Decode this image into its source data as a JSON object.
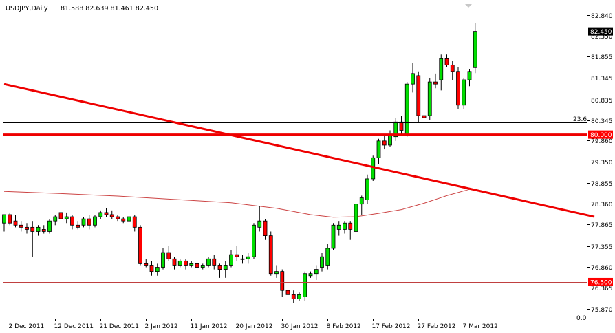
{
  "header": {
    "symbol_label": "USDJPY,Daily",
    "ohlc_label": "81.588 82.639 81.461 82.450"
  },
  "price_tags": {
    "current": "82.450",
    "level_80": "80.000",
    "level_765": "76.500"
  },
  "fib_label": "23.6",
  "bottom_left_label": "0.0",
  "colors": {
    "bull": "#00e000",
    "bear": "#ff0000",
    "candle_outline": "#000000",
    "trend_line": "#ee0000",
    "ma_line": "#cc4444",
    "tag_red": "#ff0000",
    "tag_black": "#000000",
    "grid_line": "#d0d0d0"
  },
  "chart_data": {
    "type": "candlestick",
    "title": "USDJPY,Daily",
    "ylim": [
      75.65,
      82.95
    ],
    "y_ticks": [
      82.84,
      82.35,
      81.855,
      81.345,
      80.835,
      80.345,
      79.86,
      79.35,
      78.855,
      78.36,
      77.865,
      77.355,
      76.86,
      76.365,
      75.87
    ],
    "y_tick_labels": [
      "82.840",
      "82.350",
      "81.855",
      "81.345",
      "80.835",
      "80.345",
      "79.860",
      "79.350",
      "78.855",
      "78.360",
      "77.865",
      "77.355",
      "76.860",
      "76.365",
      "75.870"
    ],
    "x_labels": [
      "2 Dec 2011",
      "12 Dec 2011",
      "21 Dec 2011",
      "2 Jan 2012",
      "11 Jan 2012",
      "20 Jan 2012",
      "30 Jan 2012",
      "8 Feb 2012",
      "17 Feb 2012",
      "27 Feb 2012",
      "7 Mar 2012"
    ],
    "x_label_index": [
      1,
      9,
      17,
      25,
      33,
      41,
      49,
      57,
      65,
      73,
      81
    ],
    "candles": [
      {
        "o": 77.9,
        "h": 78.1,
        "l": 77.7,
        "c": 78.1
      },
      {
        "o": 78.1,
        "h": 78.15,
        "l": 77.85,
        "c": 77.9
      },
      {
        "o": 77.95,
        "h": 78.1,
        "l": 77.8,
        "c": 77.85
      },
      {
        "o": 77.85,
        "h": 77.95,
        "l": 77.7,
        "c": 77.8
      },
      {
        "o": 77.8,
        "h": 77.9,
        "l": 77.65,
        "c": 77.75
      },
      {
        "o": 77.8,
        "h": 77.95,
        "l": 77.1,
        "c": 77.7
      },
      {
        "o": 77.7,
        "h": 77.85,
        "l": 77.6,
        "c": 77.8
      },
      {
        "o": 77.75,
        "h": 77.85,
        "l": 77.65,
        "c": 77.7
      },
      {
        "o": 77.7,
        "h": 78.0,
        "l": 77.65,
        "c": 77.95
      },
      {
        "o": 77.95,
        "h": 78.1,
        "l": 77.85,
        "c": 78.05
      },
      {
        "o": 78.15,
        "h": 78.2,
        "l": 77.9,
        "c": 78.0
      },
      {
        "o": 78.0,
        "h": 78.15,
        "l": 77.9,
        "c": 78.05
      },
      {
        "o": 78.05,
        "h": 78.1,
        "l": 77.75,
        "c": 77.85
      },
      {
        "o": 77.85,
        "h": 77.95,
        "l": 77.75,
        "c": 77.8
      },
      {
        "o": 77.85,
        "h": 78.05,
        "l": 77.8,
        "c": 78.0
      },
      {
        "o": 78.0,
        "h": 78.1,
        "l": 77.75,
        "c": 77.85
      },
      {
        "o": 77.85,
        "h": 78.1,
        "l": 77.8,
        "c": 78.05
      },
      {
        "o": 78.05,
        "h": 78.2,
        "l": 78.0,
        "c": 78.15
      },
      {
        "o": 78.15,
        "h": 78.25,
        "l": 78.05,
        "c": 78.1
      },
      {
        "o": 78.1,
        "h": 78.2,
        "l": 78.0,
        "c": 78.05
      },
      {
        "o": 78.05,
        "h": 78.1,
        "l": 77.95,
        "c": 78.0
      },
      {
        "o": 78.0,
        "h": 78.05,
        "l": 77.9,
        "c": 77.95
      },
      {
        "o": 77.95,
        "h": 78.1,
        "l": 77.9,
        "c": 78.05
      },
      {
        "o": 78.05,
        "h": 78.1,
        "l": 77.7,
        "c": 77.8
      },
      {
        "o": 77.8,
        "h": 77.85,
        "l": 76.9,
        "c": 76.95
      },
      {
        "o": 76.95,
        "h": 77.05,
        "l": 76.85,
        "c": 76.9
      },
      {
        "o": 76.9,
        "h": 77.0,
        "l": 76.65,
        "c": 76.75
      },
      {
        "o": 76.75,
        "h": 76.95,
        "l": 76.65,
        "c": 76.85
      },
      {
        "o": 76.85,
        "h": 77.3,
        "l": 76.8,
        "c": 77.2
      },
      {
        "o": 77.2,
        "h": 77.35,
        "l": 77.0,
        "c": 77.05
      },
      {
        "o": 77.05,
        "h": 77.1,
        "l": 76.8,
        "c": 76.9
      },
      {
        "o": 76.9,
        "h": 77.05,
        "l": 76.85,
        "c": 77.0
      },
      {
        "o": 77.0,
        "h": 77.05,
        "l": 76.8,
        "c": 76.9
      },
      {
        "o": 76.9,
        "h": 77.0,
        "l": 76.85,
        "c": 76.95
      },
      {
        "o": 76.95,
        "h": 77.05,
        "l": 76.75,
        "c": 76.85
      },
      {
        "o": 76.85,
        "h": 76.95,
        "l": 76.8,
        "c": 76.9
      },
      {
        "o": 76.9,
        "h": 77.1,
        "l": 76.85,
        "c": 77.05
      },
      {
        "o": 77.05,
        "h": 77.15,
        "l": 76.8,
        "c": 76.9
      },
      {
        "o": 76.9,
        "h": 76.95,
        "l": 76.6,
        "c": 76.8
      },
      {
        "o": 76.8,
        "h": 77.0,
        "l": 76.6,
        "c": 76.9
      },
      {
        "o": 76.9,
        "h": 77.25,
        "l": 76.85,
        "c": 77.15
      },
      {
        "o": 77.15,
        "h": 77.35,
        "l": 77.0,
        "c": 77.1
      },
      {
        "o": 77.05,
        "h": 77.15,
        "l": 76.95,
        "c": 77.05
      },
      {
        "o": 77.05,
        "h": 77.2,
        "l": 76.95,
        "c": 77.1
      },
      {
        "o": 77.1,
        "h": 77.9,
        "l": 77.05,
        "c": 77.85
      },
      {
        "o": 77.8,
        "h": 78.3,
        "l": 77.7,
        "c": 77.95
      },
      {
        "o": 77.95,
        "h": 78.0,
        "l": 77.5,
        "c": 77.6
      },
      {
        "o": 77.6,
        "h": 77.7,
        "l": 76.65,
        "c": 76.7
      },
      {
        "o": 76.7,
        "h": 76.9,
        "l": 76.6,
        "c": 76.75
      },
      {
        "o": 76.75,
        "h": 76.8,
        "l": 76.15,
        "c": 76.3
      },
      {
        "o": 76.3,
        "h": 76.45,
        "l": 76.05,
        "c": 76.2
      },
      {
        "o": 76.2,
        "h": 76.3,
        "l": 76.0,
        "c": 76.1
      },
      {
        "o": 76.1,
        "h": 76.25,
        "l": 76.05,
        "c": 76.2
      },
      {
        "o": 76.15,
        "h": 76.75,
        "l": 76.05,
        "c": 76.7
      },
      {
        "o": 76.65,
        "h": 76.75,
        "l": 76.6,
        "c": 76.7
      },
      {
        "o": 76.7,
        "h": 76.9,
        "l": 76.55,
        "c": 76.8
      },
      {
        "o": 76.85,
        "h": 77.2,
        "l": 76.75,
        "c": 77.1
      },
      {
        "o": 76.9,
        "h": 77.4,
        "l": 76.8,
        "c": 77.3
      },
      {
        "o": 77.3,
        "h": 77.9,
        "l": 77.25,
        "c": 77.85
      },
      {
        "o": 77.75,
        "h": 77.95,
        "l": 77.6,
        "c": 77.85
      },
      {
        "o": 77.75,
        "h": 77.95,
        "l": 77.65,
        "c": 77.9
      },
      {
        "o": 77.9,
        "h": 77.95,
        "l": 77.5,
        "c": 77.75
      },
      {
        "o": 77.7,
        "h": 78.45,
        "l": 77.6,
        "c": 78.35
      },
      {
        "o": 78.35,
        "h": 78.55,
        "l": 78.1,
        "c": 78.5
      },
      {
        "o": 78.45,
        "h": 79.05,
        "l": 78.35,
        "c": 78.95
      },
      {
        "o": 78.95,
        "h": 79.5,
        "l": 78.9,
        "c": 79.45
      },
      {
        "o": 79.45,
        "h": 79.9,
        "l": 79.3,
        "c": 79.85
      },
      {
        "o": 79.85,
        "h": 80.0,
        "l": 79.65,
        "c": 79.75
      },
      {
        "o": 79.75,
        "h": 80.1,
        "l": 79.7,
        "c": 80.0
      },
      {
        "o": 79.95,
        "h": 80.4,
        "l": 79.85,
        "c": 80.3
      },
      {
        "o": 80.3,
        "h": 80.45,
        "l": 80.0,
        "c": 80.1
      },
      {
        "o": 80.0,
        "h": 81.25,
        "l": 79.95,
        "c": 81.2
      },
      {
        "o": 81.2,
        "h": 81.7,
        "l": 81.0,
        "c": 81.45
      },
      {
        "o": 81.4,
        "h": 81.5,
        "l": 80.3,
        "c": 80.45
      },
      {
        "o": 80.45,
        "h": 80.65,
        "l": 80.0,
        "c": 80.4
      },
      {
        "o": 80.45,
        "h": 81.35,
        "l": 80.35,
        "c": 81.25
      },
      {
        "o": 81.25,
        "h": 81.45,
        "l": 81.1,
        "c": 81.2
      },
      {
        "o": 81.3,
        "h": 81.9,
        "l": 81.05,
        "c": 81.8
      },
      {
        "o": 81.8,
        "h": 81.9,
        "l": 81.6,
        "c": 81.65
      },
      {
        "o": 81.65,
        "h": 81.75,
        "l": 81.3,
        "c": 81.5
      },
      {
        "o": 81.5,
        "h": 81.6,
        "l": 80.6,
        "c": 80.7
      },
      {
        "o": 80.7,
        "h": 81.35,
        "l": 80.6,
        "c": 81.3
      },
      {
        "o": 81.3,
        "h": 81.55,
        "l": 81.15,
        "c": 81.5
      },
      {
        "o": 81.59,
        "h": 82.64,
        "l": 81.46,
        "c": 82.45
      }
    ],
    "levels": {
      "current_price": 82.45,
      "red_horizontal": 80.0,
      "fib_23_6": 80.28,
      "support_line": 76.5
    },
    "trend_line": {
      "from": {
        "index": 0,
        "price": 81.2
      },
      "to": {
        "index": 104,
        "price": 78.05
      }
    },
    "moving_average": [
      {
        "index": 0,
        "price": 78.65
      },
      {
        "index": 10,
        "price": 78.6
      },
      {
        "index": 20,
        "price": 78.54
      },
      {
        "index": 30,
        "price": 78.46
      },
      {
        "index": 40,
        "price": 78.38
      },
      {
        "index": 48,
        "price": 78.25
      },
      {
        "index": 54,
        "price": 78.1
      },
      {
        "index": 58,
        "price": 78.04
      },
      {
        "index": 62,
        "price": 78.05
      },
      {
        "index": 66,
        "price": 78.13
      },
      {
        "index": 70,
        "price": 78.22
      },
      {
        "index": 74,
        "price": 78.37
      },
      {
        "index": 78,
        "price": 78.55
      },
      {
        "index": 82,
        "price": 78.7
      }
    ]
  }
}
